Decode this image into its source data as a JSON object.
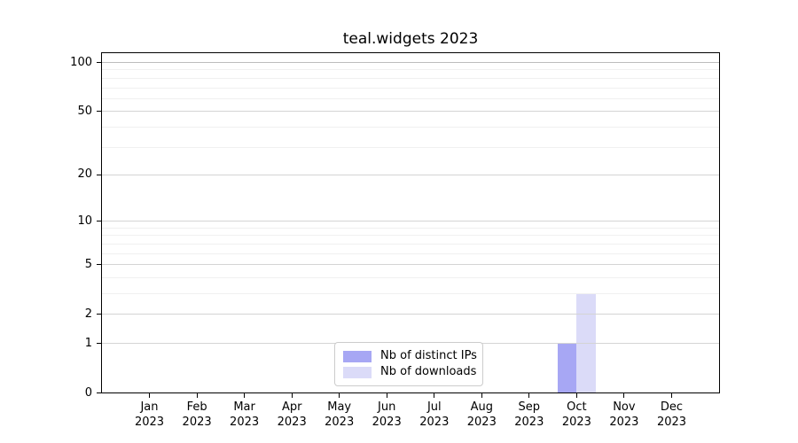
{
  "chart_data": {
    "type": "bar",
    "title": "teal.widgets 2023",
    "categories": [
      "Jan 2023",
      "Feb 2023",
      "Mar 2023",
      "Apr 2023",
      "May 2023",
      "Jun 2023",
      "Jul 2023",
      "Aug 2023",
      "Sep 2023",
      "Oct 2023",
      "Nov 2023",
      "Dec 2023"
    ],
    "series": [
      {
        "name": "Nb of distinct IPs",
        "color": "#a7a7f4",
        "values": [
          0,
          0,
          0,
          0,
          0,
          0,
          0,
          0,
          0,
          1,
          0,
          0
        ]
      },
      {
        "name": "Nb of downloads",
        "color": "#dbdbf8",
        "values": [
          0,
          0,
          0,
          0,
          0,
          0,
          0,
          0,
          0,
          3,
          0,
          0
        ]
      }
    ],
    "xlabel": "",
    "ylabel": "",
    "y_scale": "log10(1+x)",
    "y_ticks": [
      0,
      1,
      2,
      5,
      10,
      20,
      50,
      100
    ],
    "y_minor_gridlines": [
      3,
      4,
      6,
      7,
      8,
      9,
      30,
      40,
      60,
      70,
      80,
      90
    ],
    "ylim": [
      0,
      113
    ],
    "grid": true,
    "legend_position": "bottom-center-inside"
  }
}
